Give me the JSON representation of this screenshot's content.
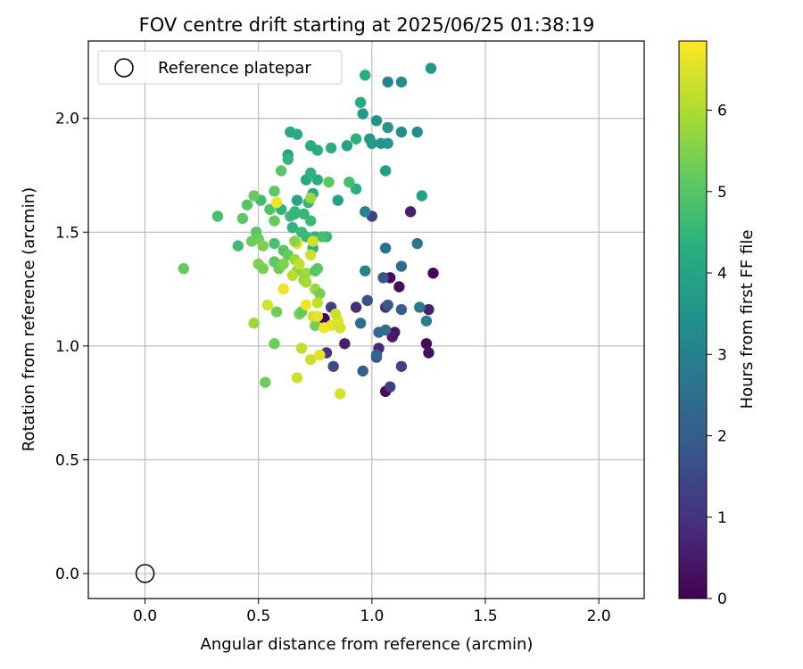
{
  "chart_data": {
    "type": "scatter",
    "title": "FOV centre drift starting at 2025/06/25 01:38:19",
    "xlabel": "Angular distance from reference (arcmin)",
    "ylabel": "Rotation from reference (arcmin)",
    "xlim": [
      -0.25,
      2.2
    ],
    "ylim": [
      -0.11,
      2.34
    ],
    "xticks": [
      {
        "v": 0.0,
        "label": "0.0"
      },
      {
        "v": 0.5,
        "label": "0.5"
      },
      {
        "v": 1.0,
        "label": "1.0"
      },
      {
        "v": 1.5,
        "label": "1.5"
      },
      {
        "v": 2.0,
        "label": "2.0"
      }
    ],
    "yticks": [
      {
        "v": 0.0,
        "label": "0.0"
      },
      {
        "v": 0.5,
        "label": "0.5"
      },
      {
        "v": 1.0,
        "label": "1.0"
      },
      {
        "v": 1.5,
        "label": "1.5"
      },
      {
        "v": 2.0,
        "label": "2.0"
      }
    ],
    "grid": true,
    "legend": {
      "position": "top-left",
      "entries": [
        {
          "label": "Reference platepar",
          "marker": "open-circle"
        }
      ]
    },
    "reference_point": {
      "x": 0.0,
      "y": 0.0
    },
    "colorbar": {
      "label": "Hours from first FF file",
      "colormap": "viridis",
      "range": [
        0,
        6.85
      ],
      "ticks": [
        {
          "v": 0,
          "label": "0"
        },
        {
          "v": 1,
          "label": "1"
        },
        {
          "v": 2,
          "label": "2"
        },
        {
          "v": 3,
          "label": "3"
        },
        {
          "v": 4,
          "label": "4"
        },
        {
          "v": 5,
          "label": "5"
        },
        {
          "v": 6,
          "label": "6"
        }
      ]
    },
    "points": [
      [
        1.27,
        1.32,
        0.1
      ],
      [
        1.08,
        1.3,
        0.2
      ],
      [
        1.12,
        1.26,
        0.25
      ],
      [
        1.24,
        1.01,
        0.15
      ],
      [
        1.25,
        0.97,
        0.3
      ],
      [
        0.79,
        1.12,
        0.1
      ],
      [
        1.06,
        0.8,
        0.2
      ],
      [
        1.1,
        1.06,
        0.4
      ],
      [
        1.09,
        1.04,
        0.5
      ],
      [
        1.17,
        1.59,
        0.6
      ],
      [
        1.25,
        1.16,
        0.6
      ],
      [
        0.88,
        1.01,
        0.6
      ],
      [
        1.03,
        0.99,
        0.8
      ],
      [
        0.93,
        1.17,
        0.9
      ],
      [
        1.06,
        1.17,
        0.8
      ],
      [
        0.8,
        0.97,
        1.0
      ],
      [
        1.08,
        0.82,
        1.2
      ],
      [
        1.13,
        0.91,
        1.3
      ],
      [
        0.82,
        1.17,
        1.3
      ],
      [
        1.0,
        1.57,
        1.4
      ],
      [
        0.83,
        0.91,
        1.6
      ],
      [
        1.02,
        0.95,
        1.7
      ],
      [
        0.98,
        1.2,
        1.7
      ],
      [
        1.05,
        1.3,
        1.8
      ],
      [
        1.07,
        1.18,
        1.9
      ],
      [
        1.13,
        1.16,
        2.0
      ],
      [
        0.96,
        0.89,
        2.1
      ],
      [
        1.02,
        0.96,
        2.2
      ],
      [
        1.03,
        1.06,
        2.3
      ],
      [
        1.06,
        1.07,
        2.4
      ],
      [
        0.95,
        1.1,
        2.5
      ],
      [
        1.13,
        1.35,
        2.4
      ],
      [
        1.06,
        1.43,
        2.5
      ],
      [
        1.2,
        1.45,
        2.6
      ],
      [
        1.21,
        1.17,
        2.8
      ],
      [
        1.24,
        1.11,
        2.9
      ],
      [
        0.97,
        1.59,
        3.0
      ],
      [
        0.97,
        1.33,
        3.0
      ],
      [
        1.07,
        2.16,
        3.1
      ],
      [
        1.13,
        2.16,
        3.3
      ],
      [
        1.26,
        2.22,
        3.6
      ],
      [
        1.2,
        1.94,
        3.3
      ],
      [
        1.13,
        1.94,
        3.4
      ],
      [
        1.07,
        1.96,
        3.5
      ],
      [
        1.02,
        1.99,
        3.5
      ],
      [
        1.04,
        1.89,
        3.5
      ],
      [
        1.07,
        1.89,
        3.6
      ],
      [
        0.99,
        1.91,
        3.6
      ],
      [
        0.96,
        2.02,
        3.7
      ],
      [
        1.0,
        1.89,
        3.7
      ],
      [
        1.06,
        1.77,
        3.8
      ],
      [
        1.22,
        1.66,
        3.9
      ],
      [
        0.95,
        2.07,
        4.2
      ],
      [
        0.97,
        2.19,
        4.3
      ],
      [
        0.93,
        1.91,
        4.3
      ],
      [
        0.89,
        1.88,
        4.0
      ],
      [
        0.85,
        1.64,
        3.9
      ],
      [
        0.93,
        1.69,
        4.3
      ],
      [
        0.73,
        1.88,
        4.2
      ],
      [
        0.76,
        1.86,
        4.3
      ],
      [
        0.82,
        1.87,
        4.3
      ],
      [
        0.64,
        1.94,
        4.1
      ],
      [
        0.67,
        1.93,
        4.2
      ],
      [
        0.63,
        1.84,
        3.9
      ],
      [
        0.63,
        1.82,
        4.5
      ],
      [
        0.71,
        1.73,
        4.1
      ],
      [
        0.76,
        1.73,
        4.3
      ],
      [
        0.73,
        1.76,
        4.4
      ],
      [
        0.74,
        1.67,
        4.1
      ],
      [
        0.67,
        1.64,
        4.0
      ],
      [
        0.72,
        1.63,
        4.5
      ],
      [
        0.6,
        1.6,
        4.4
      ],
      [
        0.66,
        1.59,
        4.5
      ],
      [
        0.64,
        1.57,
        4.6
      ],
      [
        0.66,
        1.58,
        4.5
      ],
      [
        0.7,
        1.58,
        4.5
      ],
      [
        0.73,
        1.55,
        4.6
      ],
      [
        0.69,
        1.5,
        4.6
      ],
      [
        0.65,
        1.52,
        4.4
      ],
      [
        0.66,
        1.46,
        4.5
      ],
      [
        0.71,
        1.48,
        4.6
      ],
      [
        0.74,
        1.43,
        4.4
      ],
      [
        0.75,
        1.48,
        4.4
      ],
      [
        0.8,
        1.48,
        4.6
      ],
      [
        0.78,
        1.48,
        4.8
      ],
      [
        0.81,
        1.72,
        5.1
      ],
      [
        0.9,
        1.72,
        4.8
      ],
      [
        0.6,
        1.77,
        5.0
      ],
      [
        0.57,
        1.68,
        5.1
      ],
      [
        0.51,
        1.64,
        4.7
      ],
      [
        0.55,
        1.6,
        4.9
      ],
      [
        0.48,
        1.66,
        5.2
      ],
      [
        0.45,
        1.62,
        5.0
      ],
      [
        0.32,
        1.57,
        4.8
      ],
      [
        0.43,
        1.56,
        5.1
      ],
      [
        0.57,
        1.55,
        5.2
      ],
      [
        0.41,
        1.44,
        4.7
      ],
      [
        0.49,
        1.5,
        5.0
      ],
      [
        0.5,
        1.47,
        5.3
      ],
      [
        0.47,
        1.46,
        5.3
      ],
      [
        0.52,
        1.44,
        5.5
      ],
      [
        0.57,
        1.45,
        4.8
      ],
      [
        0.61,
        1.42,
        5.0
      ],
      [
        0.63,
        1.4,
        5.2
      ],
      [
        0.57,
        1.37,
        5.1
      ],
      [
        0.5,
        1.36,
        5.5
      ],
      [
        0.52,
        1.34,
        5.4
      ],
      [
        0.59,
        1.34,
        5.3
      ],
      [
        0.61,
        1.36,
        5.5
      ],
      [
        0.17,
        1.34,
        5.2
      ],
      [
        0.67,
        1.33,
        5.6
      ],
      [
        0.71,
        1.32,
        5.9
      ],
      [
        0.75,
        1.33,
        4.9
      ],
      [
        0.76,
        1.34,
        5.1
      ],
      [
        0.7,
        1.29,
        5.7
      ],
      [
        0.71,
        1.28,
        5.9
      ],
      [
        0.75,
        1.25,
        5.8
      ],
      [
        0.77,
        1.23,
        5.4
      ],
      [
        0.68,
        1.14,
        5.5
      ],
      [
        0.69,
        1.15,
        5.2
      ],
      [
        0.58,
        1.15,
        5.3
      ],
      [
        0.75,
        1.09,
        5.4
      ],
      [
        0.57,
        1.01,
        5.3
      ],
      [
        0.48,
        1.1,
        5.8
      ],
      [
        0.53,
        0.84,
        5.3
      ],
      [
        0.67,
        0.86,
        6.3
      ],
      [
        0.73,
        0.94,
        6.3
      ],
      [
        0.69,
        0.99,
        6.2
      ],
      [
        0.77,
        0.96,
        6.6
      ],
      [
        0.86,
        0.79,
        6.4
      ],
      [
        0.79,
        1.08,
        6.7
      ],
      [
        0.82,
        1.09,
        6.6
      ],
      [
        0.86,
        1.08,
        6.4
      ],
      [
        0.85,
        1.11,
        6.5
      ],
      [
        0.84,
        1.14,
        6.3
      ],
      [
        0.74,
        1.13,
        6.4
      ],
      [
        0.76,
        1.13,
        6.6
      ],
      [
        0.71,
        1.18,
        6.7
      ],
      [
        0.76,
        1.19,
        6.2
      ],
      [
        0.54,
        1.18,
        6.4
      ],
      [
        0.61,
        1.25,
        6.7
      ],
      [
        0.65,
        1.31,
        6.1
      ],
      [
        0.66,
        1.38,
        5.8
      ],
      [
        0.68,
        1.36,
        6.2
      ],
      [
        0.73,
        1.4,
        6.3
      ],
      [
        0.74,
        1.46,
        6.4
      ],
      [
        0.67,
        1.45,
        6.5
      ],
      [
        0.58,
        1.63,
        6.7
      ],
      [
        0.66,
        1.46,
        5.6
      ],
      [
        0.73,
        1.65,
        5.8
      ]
    ]
  }
}
